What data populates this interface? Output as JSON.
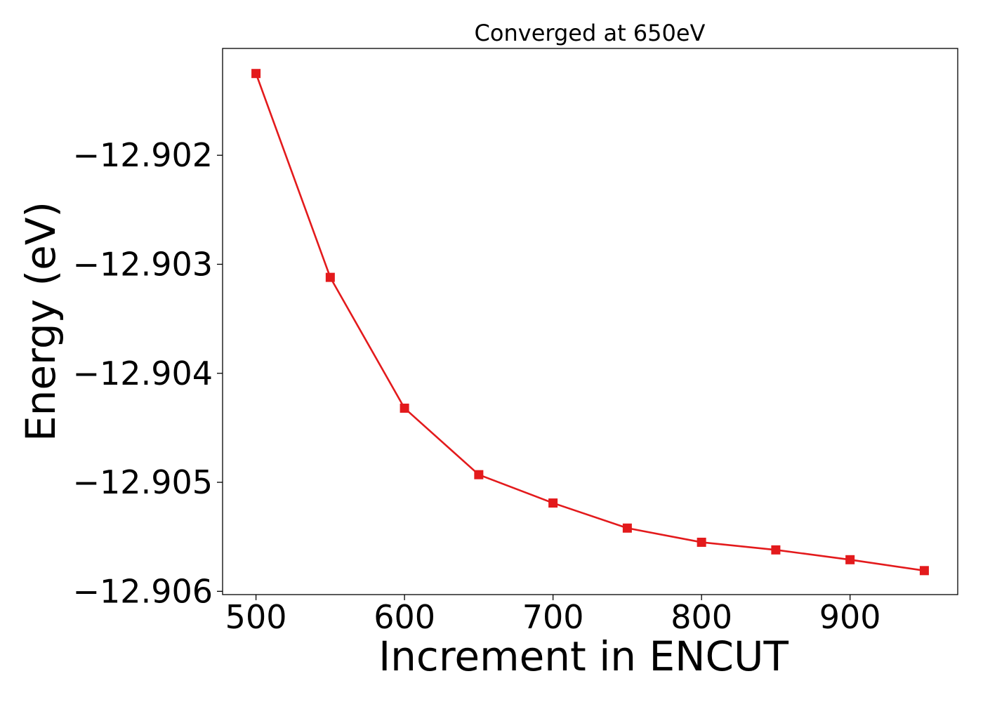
{
  "chart_data": {
    "type": "line",
    "title": "Converged at 650eV",
    "xlabel": "Increment in ENCUT",
    "ylabel": "Energy (eV)",
    "xlim": [
      477.5,
      972.5
    ],
    "ylim": [
      -12.90603,
      -12.90102
    ],
    "xticks": [
      500,
      600,
      700,
      800,
      900
    ],
    "xtick_labels": [
      "500",
      "600",
      "700",
      "800",
      "900"
    ],
    "yticks": [
      -12.902,
      -12.903,
      -12.904,
      -12.905,
      -12.906
    ],
    "ytick_labels": [
      "−12.902",
      "−12.903",
      "−12.904",
      "−12.905",
      "−12.906"
    ],
    "grid": false,
    "legend": "none",
    "series": [
      {
        "color": "#e31a1c",
        "marker": "square",
        "x": [
          500,
          550,
          600,
          650,
          700,
          750,
          800,
          850,
          900,
          950
        ],
        "y": [
          -12.90125,
          -12.90312,
          -12.90432,
          -12.90493,
          -12.90519,
          -12.90542,
          -12.90555,
          -12.90562,
          -12.90571,
          -12.90581
        ]
      }
    ]
  }
}
